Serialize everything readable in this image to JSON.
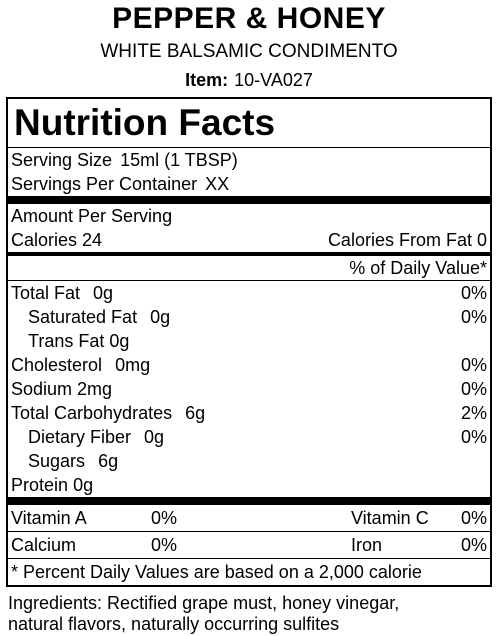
{
  "header": {
    "brand": "PEPPER & HONEY",
    "subtitle": "WHITE BALSAMIC CONDIMENTO",
    "item_label": "Item:",
    "item_value": "10-VA027"
  },
  "nutrition": {
    "title": "Nutrition Facts",
    "serving_size_label": "Serving Size",
    "serving_size_value": "15ml (1 TBSP)",
    "servings_label": "Servings Per Container",
    "servings_value": "XX",
    "amount_per_serving": "Amount Per Serving",
    "calories_label": "Calories",
    "calories_value": "24",
    "calories_fat_label": "Calories From Fat",
    "calories_fat_value": "0",
    "daily_value_header": "% of Daily Value*",
    "nutrients": [
      {
        "label": "Total Fat",
        "amount": "0g",
        "dv": "0%"
      },
      {
        "label": "Saturated Fat",
        "amount": "0g",
        "dv": "0%"
      },
      {
        "label": "Trans Fat",
        "amount": "0g",
        "dv": ""
      },
      {
        "label": "Cholesterol",
        "amount": "0mg",
        "dv": "0%"
      },
      {
        "label": "Sodium",
        "amount": "2mg",
        "dv": "0%"
      },
      {
        "label": "Total Carbohydrates",
        "amount": "6g",
        "dv": "2%"
      },
      {
        "label": "Dietary Fiber",
        "amount": "0g",
        "dv": "0%"
      },
      {
        "label": "Sugars",
        "amount": "6g",
        "dv": ""
      },
      {
        "label": "Protein",
        "amount": "0g",
        "dv": ""
      }
    ],
    "vitamins": [
      {
        "label": "Vitamin A",
        "dv": "0%"
      },
      {
        "label": "Vitamin C",
        "dv": "0%"
      },
      {
        "label": "Calcium",
        "dv": "0%"
      },
      {
        "label": "Iron",
        "dv": "0%"
      }
    ],
    "footnote": "* Percent Daily Values are based on a 2,000 calorie"
  },
  "ingredients": {
    "line1": "Ingredients: Rectified grape must, honey vinegar,",
    "line2": "natural flavors, naturally occurring sulfites"
  }
}
